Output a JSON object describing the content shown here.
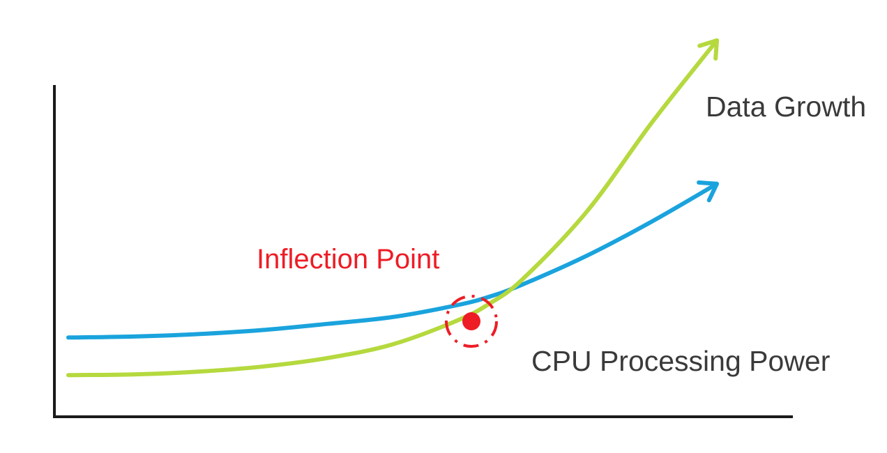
{
  "chart_data": {
    "type": "line",
    "title": "",
    "xlabel": "",
    "ylabel": "",
    "x_ticks": [],
    "y_ticks": [],
    "grid": false,
    "series": [
      {
        "name": "Data Growth",
        "color": "#b5d93e",
        "x": [
          0,
          0.1,
          0.2,
          0.3,
          0.4,
          0.5,
          0.6,
          0.65,
          0.7,
          0.8,
          0.9,
          1.0
        ],
        "y": [
          0.02,
          0.022,
          0.03,
          0.045,
          0.07,
          0.11,
          0.18,
          0.23,
          0.3,
          0.5,
          0.76,
          1.0
        ],
        "arrow": true
      },
      {
        "name": "CPU Processing Power",
        "color": "#1aa3dd",
        "x": [
          0,
          0.1,
          0.2,
          0.3,
          0.4,
          0.5,
          0.6,
          0.65,
          0.7,
          0.8,
          0.9,
          1.0
        ],
        "y": [
          0.13,
          0.133,
          0.14,
          0.152,
          0.17,
          0.19,
          0.225,
          0.25,
          0.285,
          0.37,
          0.47,
          0.58
        ],
        "arrow": true
      }
    ],
    "annotations": [
      {
        "text": "Inflection Point",
        "x": 0.65,
        "y": 0.23,
        "color": "#ee1c25"
      }
    ]
  }
}
